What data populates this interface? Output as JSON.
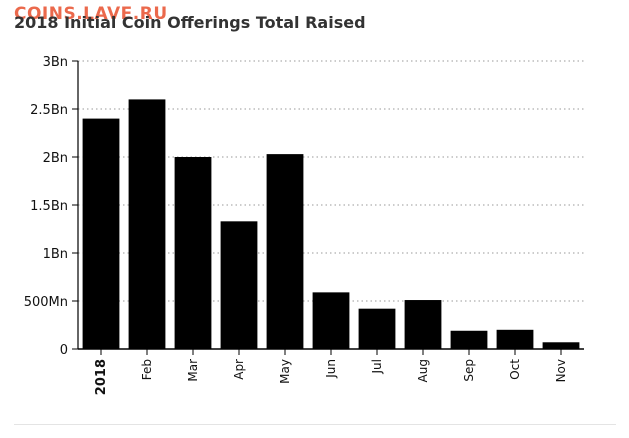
{
  "watermark": "COINS.LAVE.RU",
  "chart_data": {
    "type": "bar",
    "title": "2018 Initial Coin Offerings Total Raised",
    "xlabel": "",
    "ylabel": "",
    "categories": [
      "2018",
      "Feb",
      "Mar",
      "Apr",
      "May",
      "Jun",
      "Jul",
      "Aug",
      "Sep",
      "Oct",
      "Nov"
    ],
    "bold_categories": [
      "2018"
    ],
    "values": [
      2.4,
      2.6,
      2.0,
      1.33,
      2.03,
      0.59,
      0.42,
      0.51,
      0.19,
      0.2,
      0.07
    ],
    "value_units": "Bn",
    "ylim": [
      0,
      3
    ],
    "y_ticks": [
      {
        "value": 0,
        "label": "0"
      },
      {
        "value": 0.5,
        "label": "500Mn"
      },
      {
        "value": 1.0,
        "label": "1Bn"
      },
      {
        "value": 1.5,
        "label": "1.5Bn"
      },
      {
        "value": 2.0,
        "label": "2Bn"
      },
      {
        "value": 2.5,
        "label": "2.5Bn"
      },
      {
        "value": 3.0,
        "label": "3Bn"
      }
    ],
    "grid": true,
    "bar_color": "#000000",
    "grid_color": "#999999"
  }
}
